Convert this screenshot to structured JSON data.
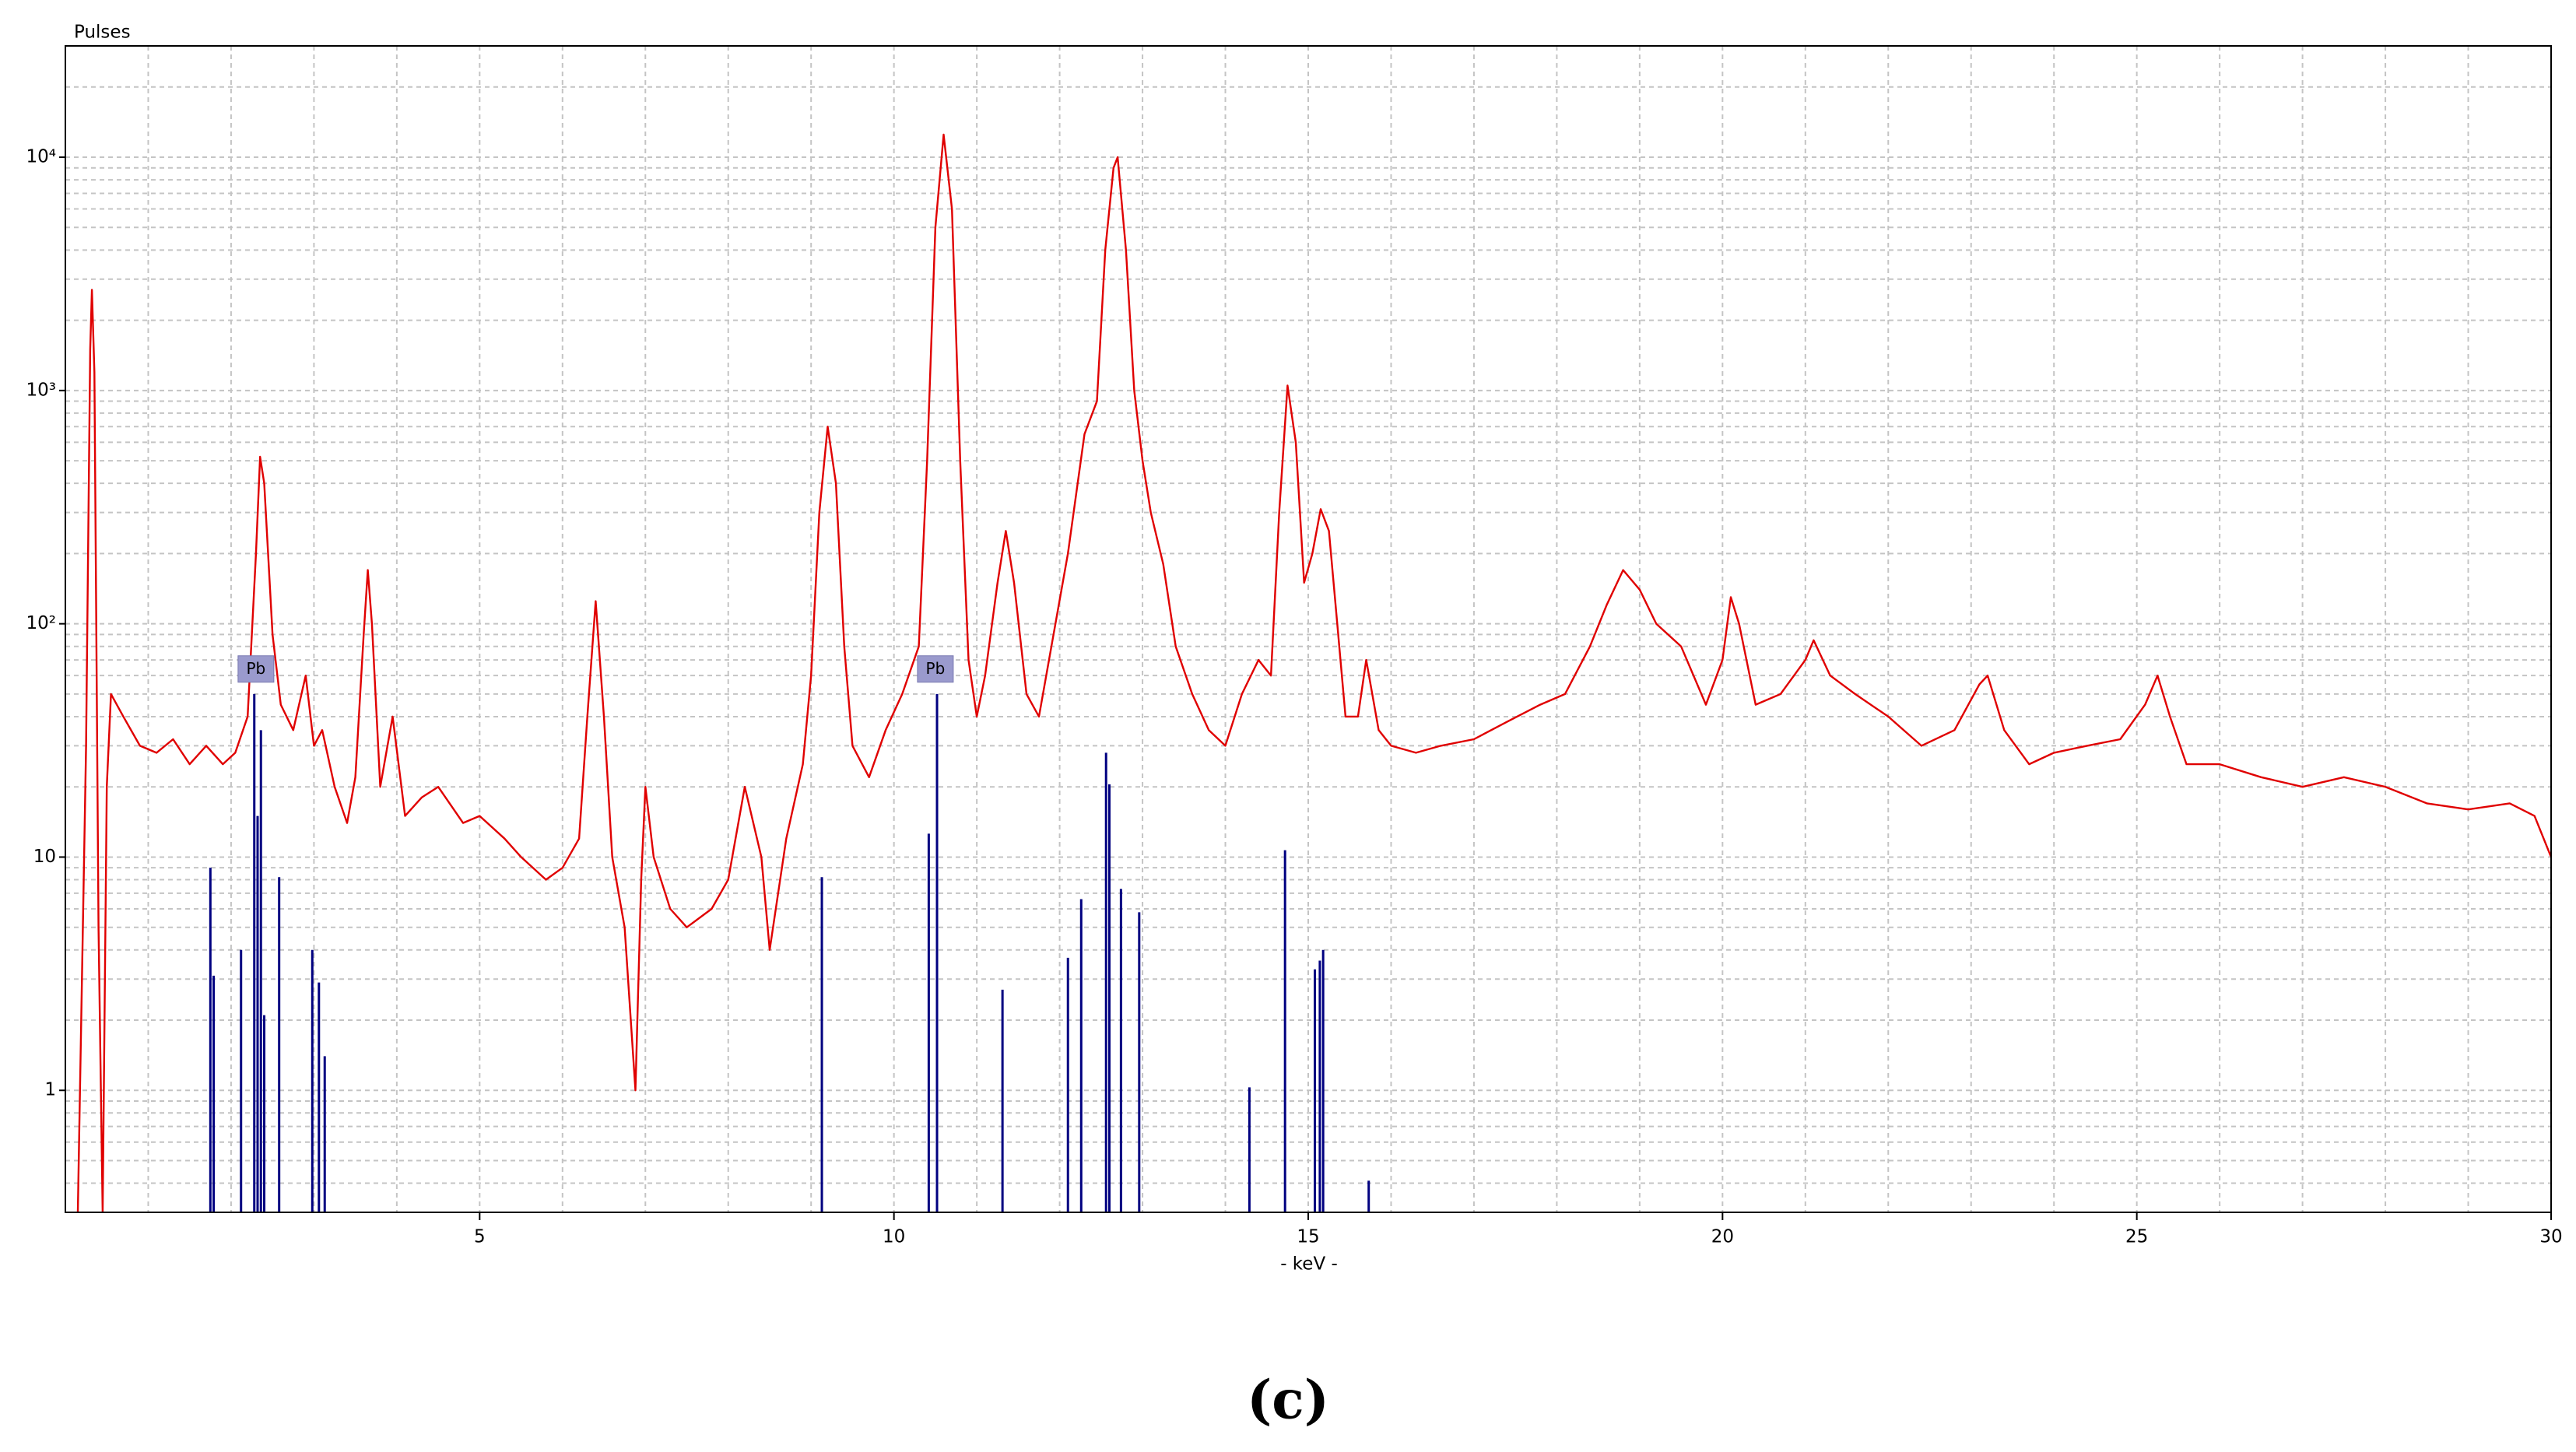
{
  "chart_data": {
    "type": "line",
    "ylabel": "Pulses",
    "xlabel": "- keV -",
    "caption": "(c)",
    "yscale": "log",
    "grid": true,
    "xlim": [
      0,
      30
    ],
    "ylim": [
      0.3,
      30000
    ],
    "xticks": [
      5,
      10,
      15,
      20,
      25,
      30
    ],
    "xminorticks": [
      1,
      2,
      3,
      4,
      6,
      7,
      8,
      9,
      11,
      12,
      13,
      14,
      16,
      17,
      18,
      19,
      21,
      22,
      23,
      24,
      26,
      27,
      28,
      29
    ],
    "yticks": [
      1,
      10,
      {
        "value": 100,
        "label": "10²"
      },
      {
        "value": 1000,
        "label": "10³"
      },
      {
        "value": 10000,
        "label": "10⁴"
      }
    ],
    "yminorticks": [
      0.4,
      0.5,
      0.6,
      0.7,
      0.8,
      0.9,
      2,
      3,
      4,
      5,
      6,
      7,
      8,
      9,
      20,
      30,
      40,
      50,
      60,
      70,
      80,
      90,
      200,
      300,
      400,
      500,
      600,
      700,
      800,
      900,
      2000,
      3000,
      4000,
      5000,
      6000,
      7000,
      8000,
      9000,
      20000
    ],
    "series": [
      {
        "style": "line",
        "color": "#e00000",
        "x": [
          0.15,
          0.25,
          0.3,
          0.32,
          0.35,
          0.4,
          0.45,
          0.5,
          0.55,
          0.7,
          0.9,
          1.1,
          1.3,
          1.5,
          1.7,
          1.9,
          2.05,
          2.2,
          2.3,
          2.35,
          2.4,
          2.5,
          2.6,
          2.75,
          2.9,
          3.0,
          3.1,
          3.25,
          3.4,
          3.5,
          3.6,
          3.65,
          3.7,
          3.8,
          3.95,
          4.1,
          4.3,
          4.5,
          4.8,
          5.0,
          5.3,
          5.5,
          5.8,
          6.0,
          6.2,
          6.3,
          6.4,
          6.5,
          6.6,
          6.75,
          6.88,
          6.95,
          7.0,
          7.1,
          7.3,
          7.5,
          7.8,
          8.0,
          8.2,
          8.4,
          8.5,
          8.7,
          8.9,
          9.0,
          9.1,
          9.2,
          9.3,
          9.4,
          9.5,
          9.7,
          9.9,
          10.1,
          10.3,
          10.4,
          10.5,
          10.6,
          10.7,
          10.8,
          10.9,
          11.0,
          11.1,
          11.25,
          11.35,
          11.45,
          11.6,
          11.75,
          11.9,
          12.1,
          12.3,
          12.45,
          12.55,
          12.65,
          12.7,
          12.8,
          12.9,
          13.0,
          13.1,
          13.25,
          13.4,
          13.6,
          13.8,
          14.0,
          14.2,
          14.4,
          14.55,
          14.65,
          14.75,
          14.85,
          14.95,
          15.05,
          15.15,
          15.25,
          15.35,
          15.45,
          15.6,
          15.7,
          15.85,
          16.0,
          16.3,
          16.6,
          17.0,
          17.4,
          17.8,
          18.1,
          18.4,
          18.6,
          18.8,
          19.0,
          19.2,
          19.5,
          19.8,
          20.0,
          20.1,
          20.2,
          20.4,
          20.7,
          21.0,
          21.1,
          21.3,
          21.6,
          22.0,
          22.4,
          22.8,
          23.1,
          23.2,
          23.4,
          23.7,
          24.0,
          24.4,
          24.8,
          25.1,
          25.25,
          25.4,
          25.6,
          26.0,
          26.5,
          27.0,
          27.5,
          28.0,
          28.5,
          29.0,
          29.5,
          29.8,
          30.0
        ],
        "values": [
          0.3,
          30,
          1500,
          2700,
          1200,
          5,
          0.3,
          20,
          50,
          40,
          30,
          28,
          32,
          25,
          30,
          25,
          28,
          40,
          200,
          520,
          400,
          90,
          45,
          35,
          60,
          30,
          35,
          20,
          14,
          22,
          90,
          170,
          100,
          20,
          40,
          15,
          18,
          20,
          14,
          15,
          12,
          10,
          8,
          9,
          12,
          40,
          125,
          40,
          10,
          5,
          1,
          8,
          20,
          10,
          6,
          5,
          6,
          8,
          20,
          10,
          4,
          12,
          25,
          60,
          300,
          700,
          400,
          80,
          30,
          22,
          35,
          50,
          80,
          500,
          5000,
          12500,
          6000,
          500,
          70,
          40,
          60,
          150,
          250,
          150,
          50,
          40,
          80,
          200,
          650,
          900,
          4000,
          9000,
          10000,
          4000,
          1000,
          500,
          300,
          180,
          80,
          50,
          35,
          30,
          50,
          70,
          60,
          300,
          1050,
          600,
          150,
          200,
          310,
          250,
          100,
          40,
          40,
          70,
          35,
          30,
          28,
          30,
          32,
          38,
          45,
          50,
          80,
          120,
          170,
          140,
          100,
          80,
          45,
          70,
          130,
          100,
          45,
          50,
          70,
          85,
          60,
          50,
          40,
          30,
          35,
          55,
          60,
          35,
          25,
          28,
          30,
          32,
          45,
          60,
          40,
          25,
          25,
          22,
          20,
          22,
          20,
          17,
          16,
          17,
          15,
          10
        ]
      },
      {
        "style": "stem",
        "color": "#000080",
        "x": [
          1.75,
          1.79,
          2.12,
          2.28,
          2.32,
          2.36,
          2.4,
          2.58,
          2.98,
          3.06,
          3.13,
          9.13,
          10.42,
          10.52,
          11.31,
          12.1,
          12.26,
          12.56,
          12.6,
          12.74,
          12.96,
          14.29,
          14.72,
          15.08,
          15.14,
          15.18,
          15.73
        ],
        "values": [
          9,
          3.1,
          4,
          50,
          15,
          35,
          2.1,
          8.2,
          4,
          2.9,
          1.4,
          8.2,
          12.6,
          50,
          2.7,
          3.7,
          6.6,
          28,
          20.5,
          7.3,
          5.8,
          1.03,
          10.7,
          3.3,
          3.6,
          4,
          0.41
        ]
      }
    ],
    "annotations": [
      {
        "text": "Pb",
        "x": 2.3,
        "y": 64
      },
      {
        "text": "Pb",
        "x": 10.5,
        "y": 64
      }
    ]
  }
}
